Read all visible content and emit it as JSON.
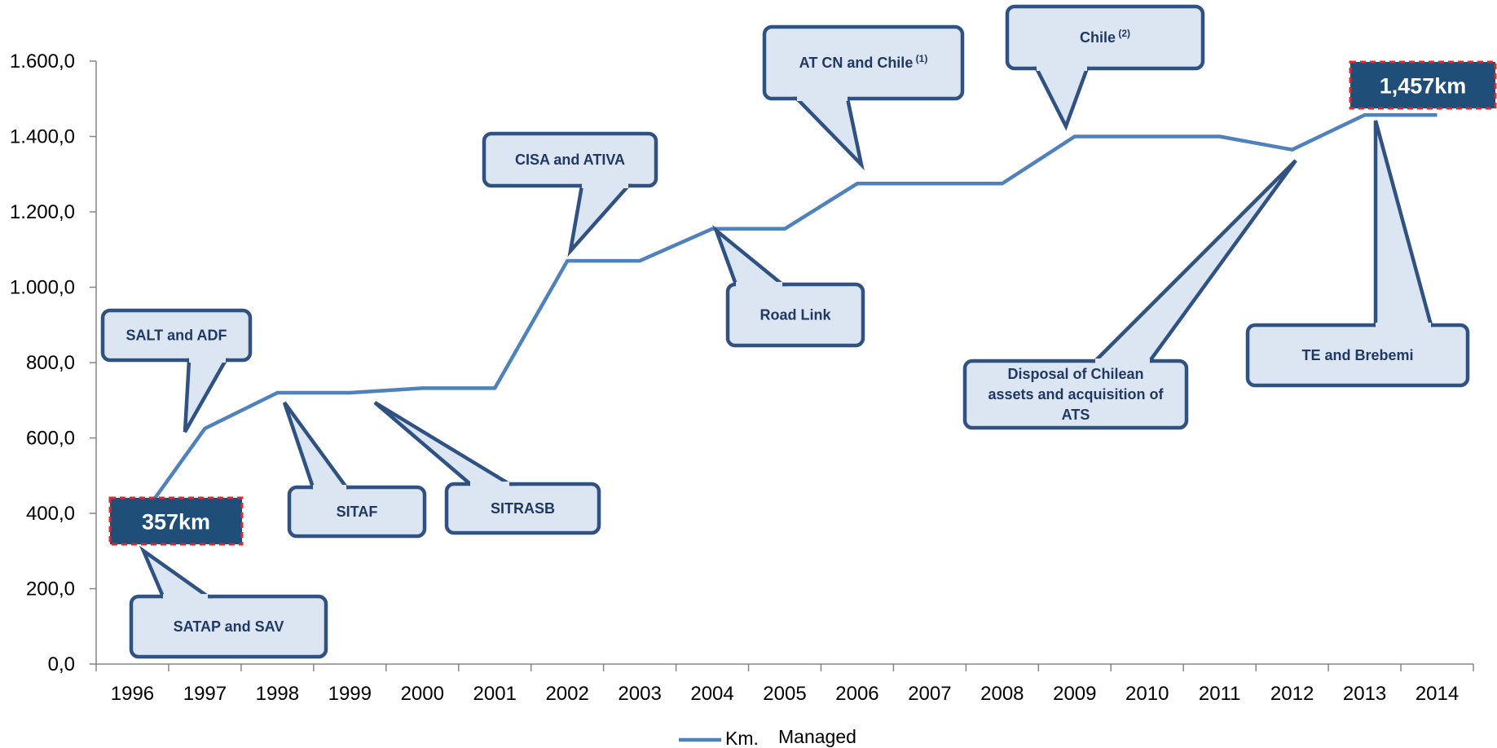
{
  "chart_data": {
    "type": "line",
    "categories": [
      "1996",
      "1997",
      "1998",
      "1999",
      "2000",
      "2001",
      "2002",
      "2003",
      "2004",
      "2005",
      "2006",
      "2007",
      "2008",
      "2009",
      "2010",
      "2011",
      "2012",
      "2013",
      "2014"
    ],
    "series": [
      {
        "name": "Km. Managed",
        "values": [
          357,
          625,
          720,
          720,
          732,
          732,
          1070,
          1070,
          1155,
          1155,
          1275,
          1275,
          1275,
          1400,
          1400,
          1400,
          1365,
          1457,
          1457
        ]
      }
    ],
    "ylim": [
      0,
      1600
    ],
    "yticks": [
      0,
      200,
      400,
      600,
      800,
      1000,
      1200,
      1400,
      1600
    ],
    "ytick_labels": [
      "0,0",
      "200,0",
      "400,0",
      "600,0",
      "800,0",
      "1.000,0",
      "1.200,0",
      "1.400,0",
      "1.600,0"
    ],
    "grid": false,
    "legend": {
      "position": "bottom",
      "text_line1": "Managed",
      "text_line2": "Km."
    },
    "line_color": "#4f81bd",
    "badges": [
      {
        "text": "357km",
        "year": "1996"
      },
      {
        "text": "1,457km",
        "year": "2013"
      }
    ],
    "annotations": [
      {
        "lines": [
          "SATAP and SAV"
        ],
        "sup": "",
        "year": "1996"
      },
      {
        "lines": [
          "SALT and ADF"
        ],
        "sup": "",
        "year": "1997"
      },
      {
        "lines": [
          "SITAF"
        ],
        "sup": "",
        "year": "1998"
      },
      {
        "lines": [
          "SITRASB"
        ],
        "sup": "",
        "year": "1999"
      },
      {
        "lines": [
          "CISA and ATIVA"
        ],
        "sup": "",
        "year": "2002"
      },
      {
        "lines": [
          "Road Link"
        ],
        "sup": "",
        "year": "2004"
      },
      {
        "lines": [
          "AT CN and Chile"
        ],
        "sup": "(1)",
        "year": "2006"
      },
      {
        "lines": [
          "Chile"
        ],
        "sup": "(2)",
        "year": "2009"
      },
      {
        "lines": [
          "Disposal of Chilean",
          "assets and acquisition of",
          "ATS"
        ],
        "sup": "",
        "year": "2012"
      },
      {
        "lines": [
          "TE and Brebemi"
        ],
        "sup": "",
        "year": "2013"
      }
    ],
    "colors": {
      "callout_fill": "#dce6f2",
      "callout_stroke": "#2f5283",
      "callout_text": "#1f3864",
      "badge_fill": "#1f4e79",
      "badge_border": "#e0282e"
    }
  }
}
